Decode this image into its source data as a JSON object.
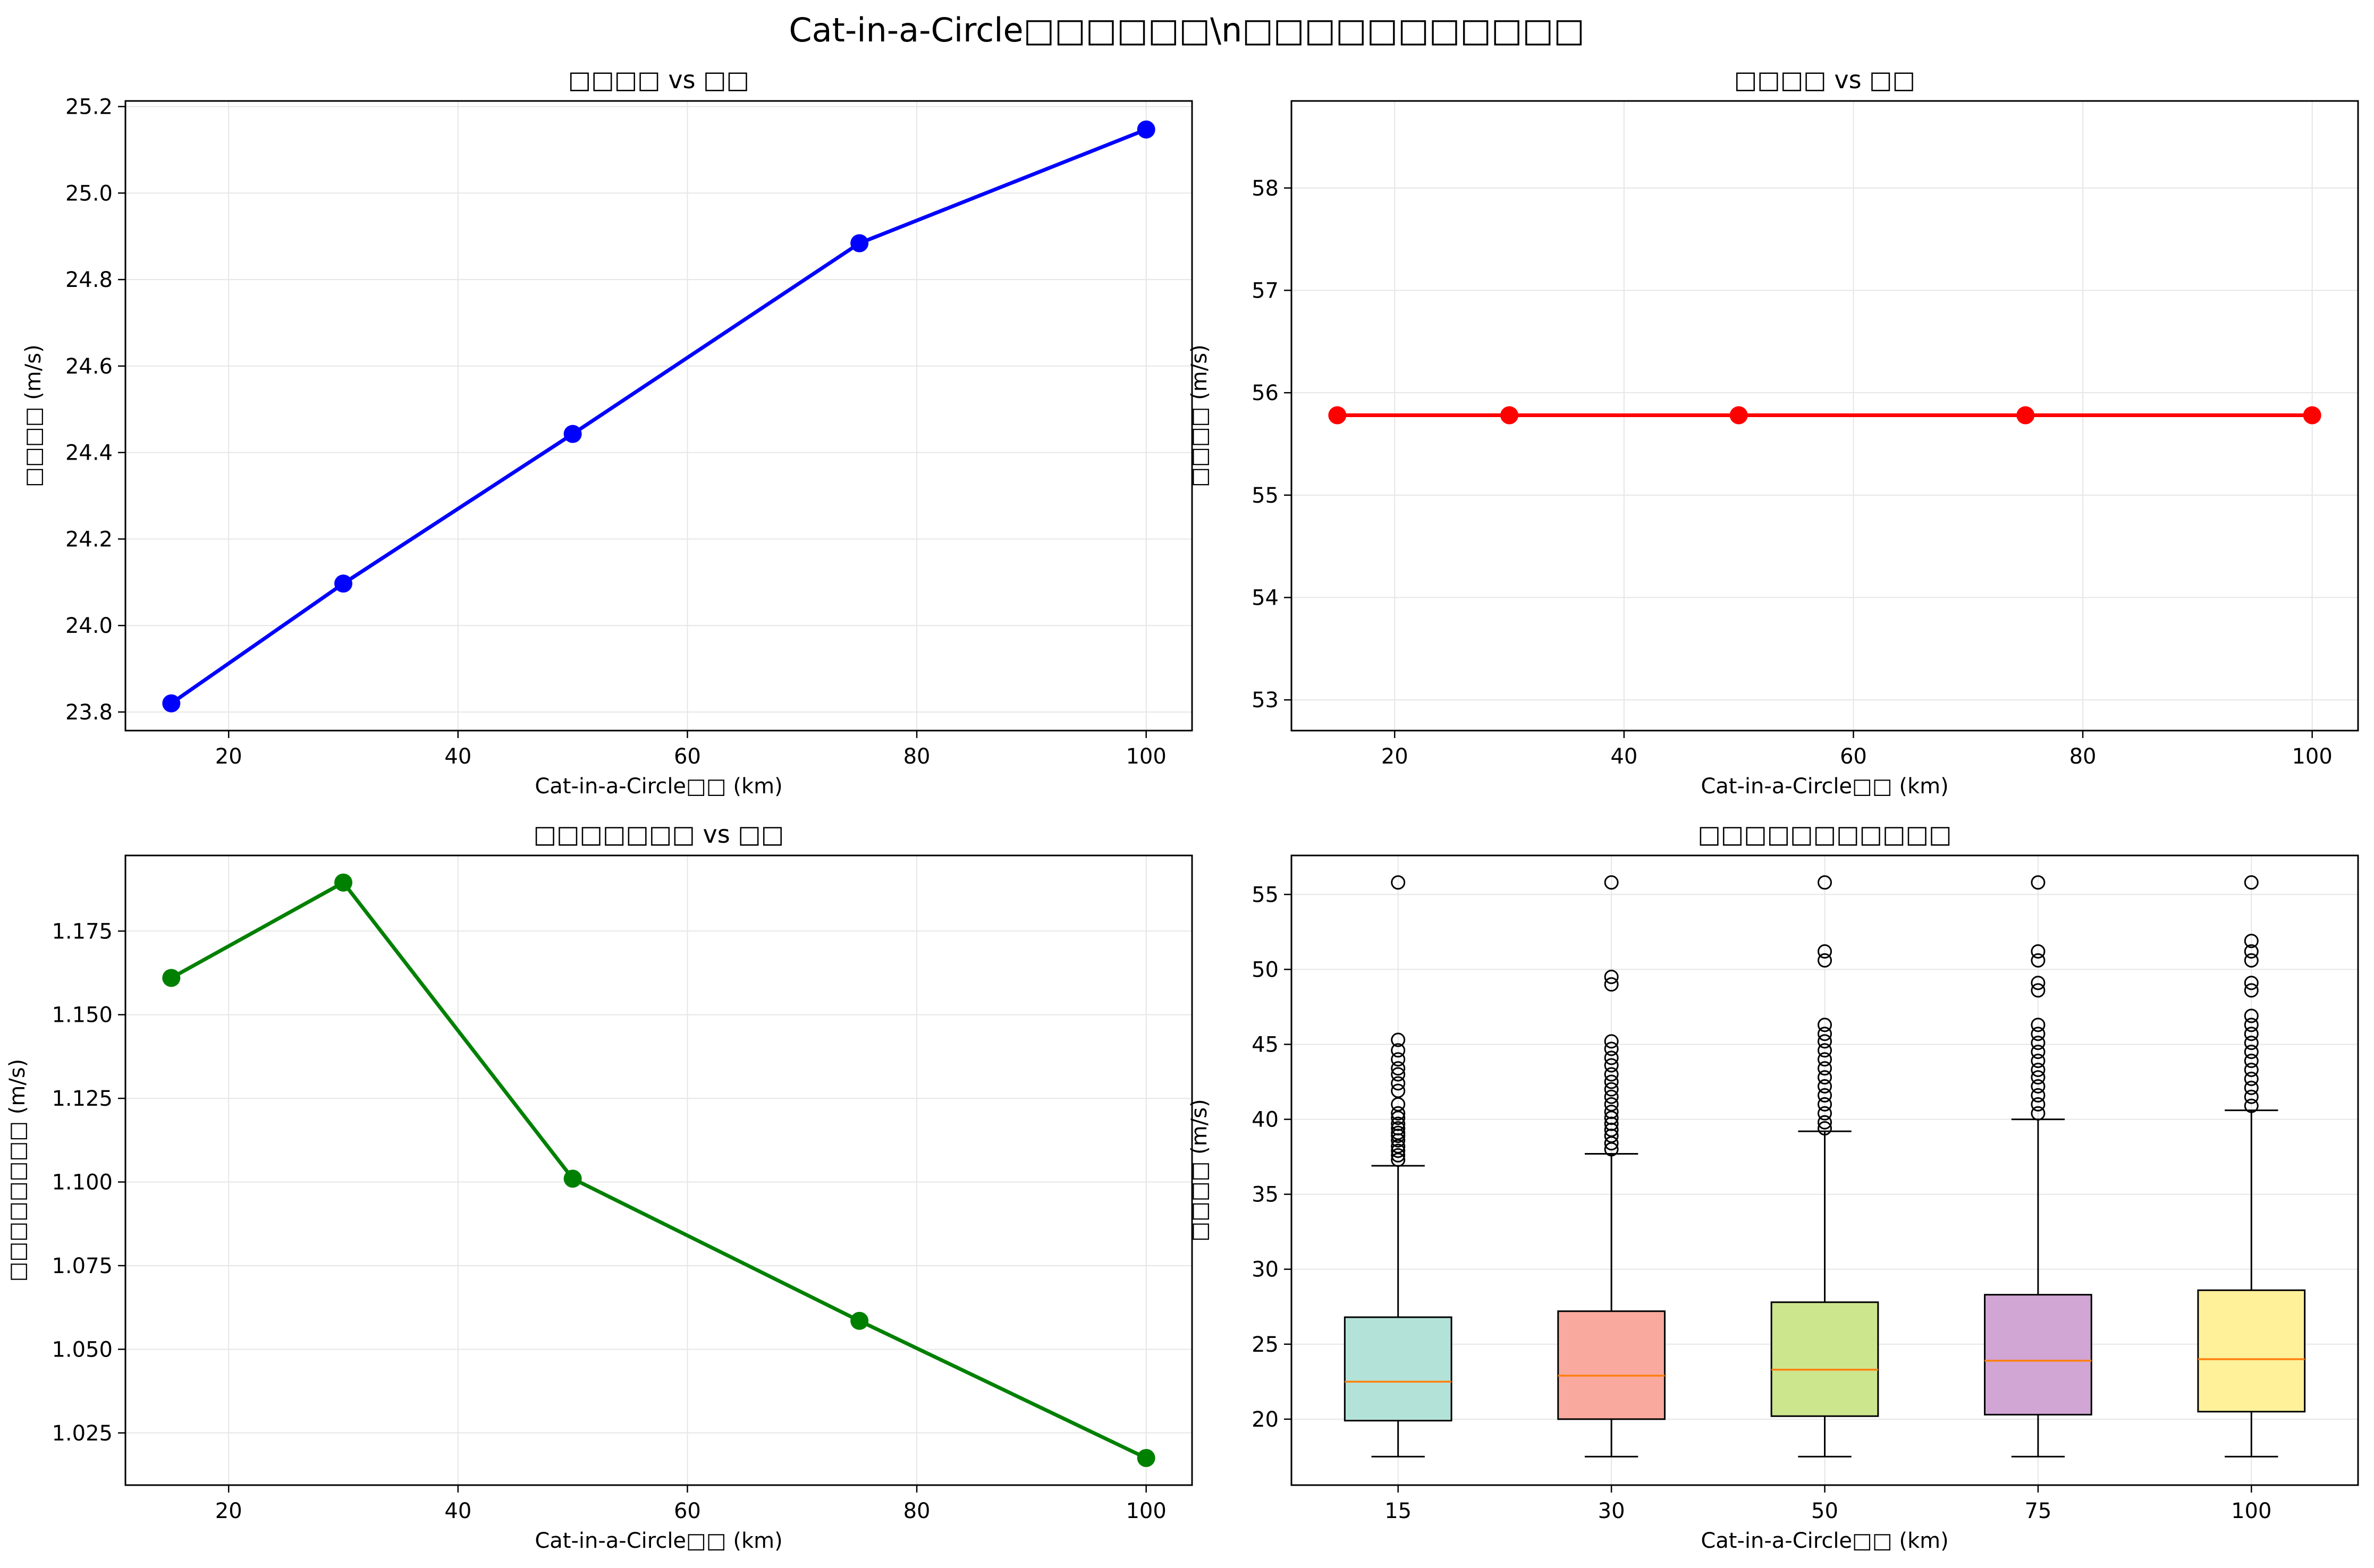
{
  "suptitle": "Cat-in-a-Circle□□□□□□\\n□□□□□□□□□□□",
  "chart_data": [
    {
      "type": "line",
      "title": "□□□□ vs □□",
      "xlabel": "Cat-in-a-Circle□□ (km)",
      "ylabel": "□□□□ (m/s)",
      "x": [
        15,
        30,
        50,
        75,
        100
      ],
      "y": [
        23.82,
        24.097,
        24.443,
        24.884,
        25.147
      ],
      "color": "#0000ff",
      "xlim": [
        11,
        104
      ],
      "ylim": [
        23.757,
        25.213
      ],
      "xticks": [
        20,
        40,
        60,
        80,
        100
      ],
      "xtick_labels": [
        "20",
        "40",
        "60",
        "80",
        "100"
      ],
      "yticks": [
        23.8,
        24.0,
        24.2,
        24.4,
        24.6,
        24.8,
        25.0,
        25.2
      ],
      "ytick_labels": [
        "23.8",
        "24.0",
        "24.2",
        "24.4",
        "24.6",
        "24.8",
        "25.0",
        "25.2"
      ],
      "grid": true
    },
    {
      "type": "line",
      "title": "□□□□ vs □□",
      "xlabel": "Cat-in-a-Circle□□ (km)",
      "ylabel": "□□□□ (m/s)",
      "x": [
        15,
        30,
        50,
        75,
        100
      ],
      "y": [
        55.78,
        55.78,
        55.78,
        55.78,
        55.78
      ],
      "color": "#ff0000",
      "xlim": [
        11,
        104
      ],
      "ylim": [
        52.7,
        58.85
      ],
      "xticks": [
        20,
        40,
        60,
        80,
        100
      ],
      "xtick_labels": [
        "20",
        "40",
        "60",
        "80",
        "100"
      ],
      "yticks": [
        53,
        54,
        55,
        56,
        57,
        58
      ],
      "ytick_labels": [
        "53",
        "54",
        "55",
        "56",
        "57",
        "58"
      ],
      "grid": true
    },
    {
      "type": "line",
      "title": "□□□□□□□ vs □□",
      "xlabel": "Cat-in-a-Circle□□ (km)",
      "ylabel": "□□□□□□□□ (m/s)",
      "x": [
        15,
        30,
        50,
        75,
        100
      ],
      "y": [
        1.161,
        1.1895,
        1.101,
        1.0585,
        1.0175
      ],
      "color": "#008000",
      "xlim": [
        11,
        104
      ],
      "ylim": [
        1.0094,
        1.1976
      ],
      "xticks": [
        20,
        40,
        60,
        80,
        100
      ],
      "xtick_labels": [
        "20",
        "40",
        "60",
        "80",
        "100"
      ],
      "yticks": [
        1.025,
        1.05,
        1.075,
        1.1,
        1.125,
        1.15,
        1.175
      ],
      "ytick_labels": [
        "1.025",
        "1.050",
        "1.075",
        "1.100",
        "1.125",
        "1.150",
        "1.175"
      ],
      "grid": true
    },
    {
      "type": "box",
      "title": "□□□□□□□□□□□",
      "xlabel": "Cat-in-a-Circle□□ (km)",
      "ylabel": "□□□□ (m/s)",
      "categories": [
        "15",
        "30",
        "50",
        "75",
        "100"
      ],
      "colors": [
        "#b3e2d8",
        "#f9a99d",
        "#cce68e",
        "#d1a5d4",
        "#fff09a"
      ],
      "boxes": [
        {
          "whisker_low": 17.5,
          "q1": 19.9,
          "median": 22.5,
          "q3": 26.8,
          "whisker_high": 36.9,
          "outliers": [
            37.3,
            37.6,
            37.9,
            38.2,
            38.6,
            38.9,
            39.1,
            39.4,
            39.7,
            40.1,
            40.4,
            41.0,
            41.9,
            42.4,
            43.0,
            43.4,
            44.0,
            44.6,
            45.3,
            55.8
          ]
        },
        {
          "whisker_low": 17.5,
          "q1": 20.0,
          "median": 22.9,
          "q3": 27.2,
          "whisker_high": 37.7,
          "outliers": [
            38.0,
            38.4,
            38.9,
            39.3,
            39.7,
            40.1,
            40.5,
            41.0,
            41.5,
            42.0,
            42.5,
            43.0,
            43.6,
            44.1,
            44.7,
            45.2,
            49.0,
            49.5,
            55.8
          ]
        },
        {
          "whisker_low": 17.5,
          "q1": 20.2,
          "median": 23.3,
          "q3": 27.8,
          "whisker_high": 39.2,
          "outliers": [
            39.4,
            39.8,
            40.4,
            41.0,
            41.6,
            42.2,
            42.8,
            43.4,
            44.0,
            44.6,
            45.2,
            45.7,
            46.3,
            50.6,
            51.2,
            55.8
          ]
        },
        {
          "whisker_low": 17.5,
          "q1": 20.3,
          "median": 23.9,
          "q3": 28.3,
          "whisker_high": 40.0,
          "outliers": [
            40.4,
            41.0,
            41.6,
            42.2,
            42.8,
            43.3,
            43.9,
            44.5,
            45.1,
            45.7,
            46.3,
            48.6,
            49.1,
            50.6,
            51.2,
            55.8
          ]
        },
        {
          "whisker_low": 17.5,
          "q1": 20.5,
          "median": 24.0,
          "q3": 28.6,
          "whisker_high": 40.6,
          "outliers": [
            40.9,
            41.5,
            42.1,
            42.7,
            43.3,
            43.9,
            44.5,
            45.1,
            45.7,
            46.3,
            46.9,
            48.6,
            49.1,
            50.6,
            51.2,
            51.9,
            55.8
          ]
        }
      ],
      "ylim": [
        15.6,
        57.6
      ],
      "yticks": [
        20,
        25,
        30,
        35,
        40,
        45,
        50,
        55
      ],
      "ytick_labels": [
        "20",
        "25",
        "30",
        "35",
        "40",
        "45",
        "50",
        "55"
      ],
      "grid": true
    }
  ]
}
